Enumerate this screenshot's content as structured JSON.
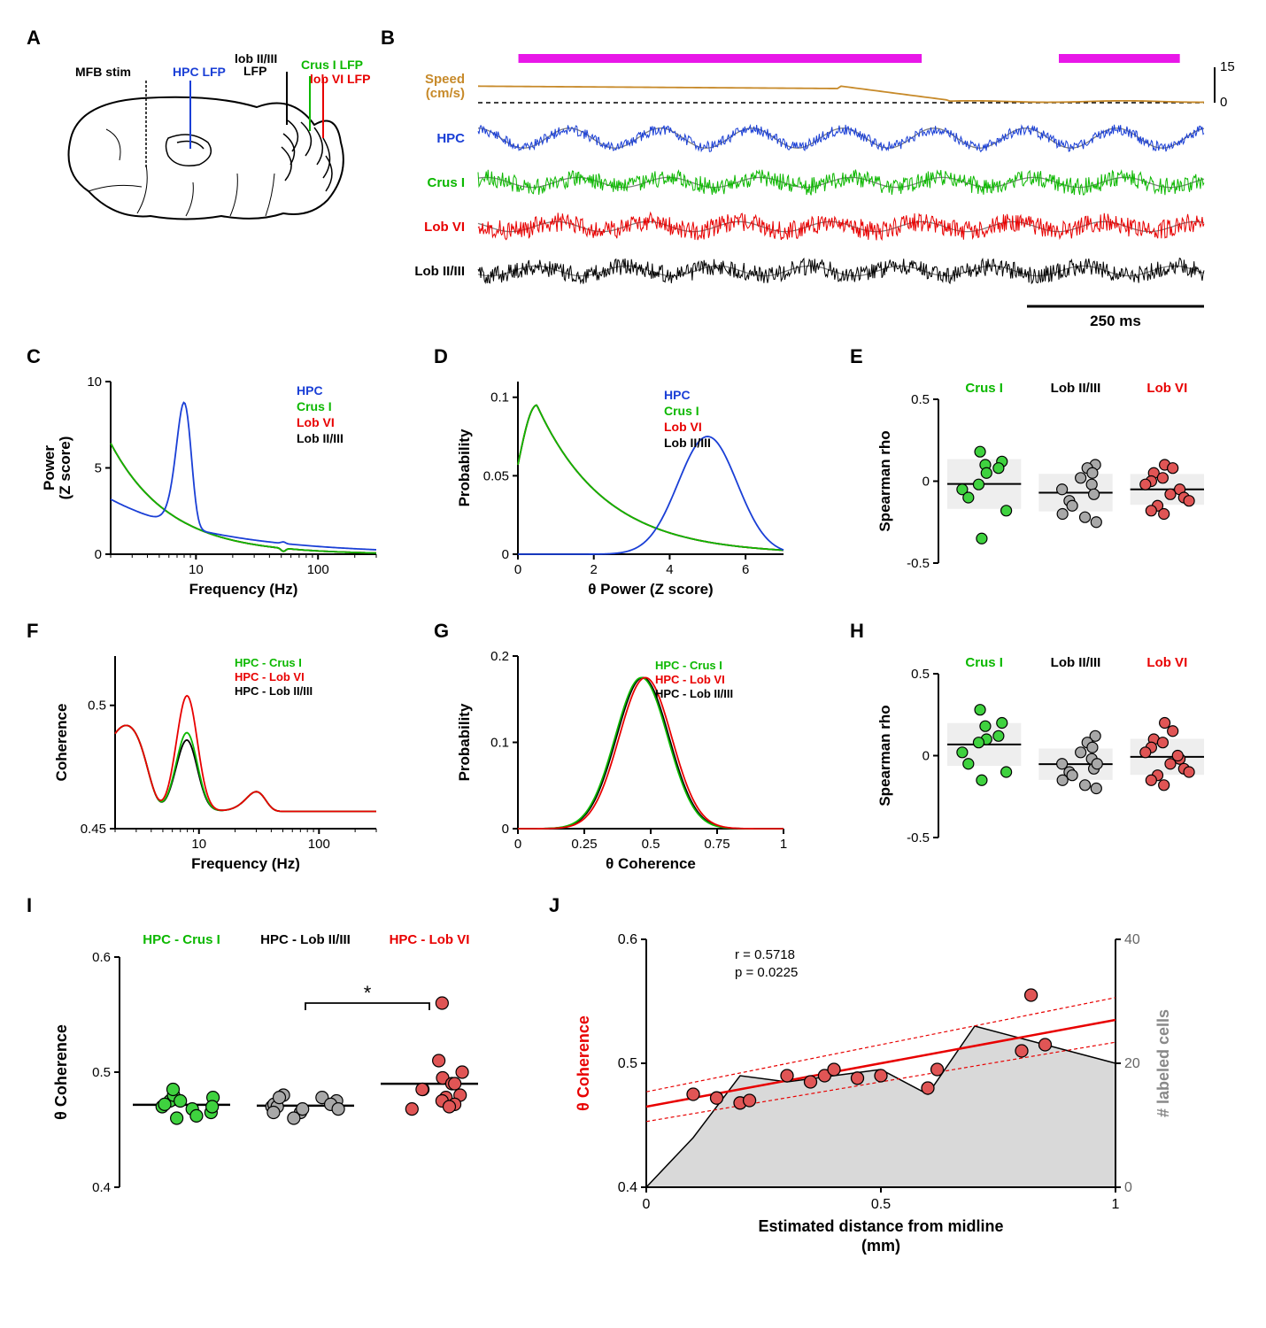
{
  "colors": {
    "hpc": "#1a3fd6",
    "crusI": "#0cb800",
    "lobVI": "#e80000",
    "lobII_III": "#000000",
    "speed": "#c78a2a",
    "magenta": "#e817e8",
    "gray": "#808080",
    "lightgray": "#cccccc",
    "fillgray": "#d9d9d9",
    "dotgreen": "#3fd23f",
    "dotgray": "#a8a8a8",
    "dotred": "#e05555"
  },
  "global": {
    "fontsize_label": 22,
    "fontsize_axis": 16,
    "fontsize_tick": 14
  },
  "panelA": {
    "label": "A",
    "brain_labels": {
      "mfb": "MFB stim",
      "hpc": "HPC LFP",
      "lobII_III": "lob II/III\nLFP",
      "crusI": "Crus I LFP",
      "lobVI": "lob VI LFP"
    }
  },
  "panelB": {
    "label": "B",
    "traces": [
      {
        "name": "Speed\n(cm/s)",
        "key": "speed"
      },
      {
        "name": "HPC",
        "key": "hpc"
      },
      {
        "name": "Crus I",
        "key": "crusI"
      },
      {
        "name": "Lob VI",
        "key": "lobVI"
      },
      {
        "name": "Lob II/III",
        "key": "lobII_III"
      }
    ],
    "scalebar": {
      "x": "250 ms",
      "y_top": "15",
      "y_bot": "0"
    },
    "magenta_bars": [
      [
        50,
        550
      ],
      [
        720,
        870
      ]
    ]
  },
  "panelC": {
    "label": "C",
    "xlabel": "Frequency (Hz)",
    "ylabel": "Power\n(Z score)",
    "xlog": true,
    "xlim": [
      2,
      300
    ],
    "ylim": [
      0,
      10
    ],
    "yticks": [
      0,
      5,
      10
    ],
    "xticks": [
      10,
      100
    ],
    "legend": [
      "HPC",
      "Crus I",
      "Lob VI",
      "Lob II/III"
    ],
    "legend_keys": [
      "hpc",
      "crusI",
      "lobVI",
      "lobII_III"
    ]
  },
  "panelD": {
    "label": "D",
    "xlabel": "θ Power (Z score)",
    "ylabel": "Probability",
    "xlim": [
      0,
      7
    ],
    "ylim": [
      0,
      0.11
    ],
    "xticks": [
      0,
      2,
      4,
      6
    ],
    "yticks": [
      0,
      0.05,
      0.1
    ],
    "legend": [
      "HPC",
      "Crus I",
      "Lob VI",
      "Lob II/III"
    ],
    "legend_keys": [
      "hpc",
      "crusI",
      "lobVI",
      "lobII_III"
    ]
  },
  "panelE": {
    "label": "E",
    "ylabel": "Spearman rho",
    "ylim": [
      -0.5,
      0.5
    ],
    "yticks": [
      -0.5,
      0,
      0.5
    ],
    "groups": [
      "Crus I",
      "Lob II/III",
      "Lob VI"
    ],
    "group_keys": [
      "crusI",
      "lobII_III",
      "lobVI"
    ],
    "data": {
      "crusI": [
        0.18,
        0.12,
        0.1,
        0.08,
        0.05,
        -0.02,
        -0.05,
        -0.1,
        -0.18,
        -0.35
      ],
      "lobII_III": [
        0.1,
        0.08,
        0.05,
        0.02,
        -0.02,
        -0.05,
        -0.08,
        -0.12,
        -0.15,
        -0.2,
        -0.22,
        -0.25
      ],
      "lobVI": [
        0.1,
        0.08,
        0.05,
        0.02,
        0,
        -0.02,
        -0.05,
        -0.08,
        -0.1,
        -0.12,
        -0.15,
        -0.18,
        -0.2
      ]
    }
  },
  "panelF": {
    "label": "F",
    "xlabel": "Frequency (Hz)",
    "ylabel": "Coherence",
    "xlog": true,
    "xlim": [
      2,
      300
    ],
    "ylim": [
      0.45,
      0.52
    ],
    "xticks": [
      10,
      100
    ],
    "yticks": [
      0.45,
      0.5
    ],
    "legend": [
      "HPC - Crus I",
      "HPC - Lob VI",
      "HPC - Lob II/III"
    ],
    "legend_keys": [
      "crusI",
      "lobVI",
      "lobII_III"
    ]
  },
  "panelG": {
    "label": "G",
    "xlabel": "θ Coherence",
    "ylabel": "Probability",
    "xlim": [
      0,
      1
    ],
    "ylim": [
      0,
      0.2
    ],
    "xticks": [
      0,
      0.25,
      0.5,
      0.75,
      1
    ],
    "yticks": [
      0,
      0.1,
      0.2
    ],
    "legend": [
      "HPC - Crus I",
      "HPC - Lob VI",
      "HPC - Lob II/III"
    ],
    "legend_keys": [
      "crusI",
      "lobVI",
      "lobII_III"
    ]
  },
  "panelH": {
    "label": "H",
    "ylabel": "Spearman rho",
    "ylim": [
      -0.5,
      0.5
    ],
    "yticks": [
      -0.5,
      0,
      0.5
    ],
    "groups": [
      "Crus I",
      "Lob II/III",
      "Lob VI"
    ],
    "group_keys": [
      "crusI",
      "lobII_III",
      "lobVI"
    ],
    "data": {
      "crusI": [
        0.28,
        0.2,
        0.18,
        0.12,
        0.1,
        0.08,
        0.02,
        -0.05,
        -0.1,
        -0.15
      ],
      "lobII_III": [
        0.12,
        0.08,
        0.05,
        0.02,
        -0.02,
        -0.05,
        -0.08,
        -0.1,
        -0.12,
        -0.15,
        -0.18,
        -0.2,
        -0.05
      ],
      "lobVI": [
        0.2,
        0.15,
        0.1,
        0.08,
        0.05,
        0.02,
        -0.02,
        -0.05,
        -0.08,
        -0.1,
        -0.12,
        -0.15,
        -0.18,
        0.0
      ]
    }
  },
  "panelI": {
    "label": "I",
    "ylabel": "θ Coherence",
    "ylim": [
      0.4,
      0.6
    ],
    "yticks": [
      0.4,
      0.5,
      0.6
    ],
    "groups": [
      "HPC - Crus I",
      "HPC - Lob II/III",
      "HPC - Lob VI"
    ],
    "group_keys": [
      "crusI",
      "lobII_III",
      "lobVI"
    ],
    "data": {
      "crusI": [
        0.475,
        0.47,
        0.465,
        0.48,
        0.468,
        0.472,
        0.478,
        0.46,
        0.485,
        0.475,
        0.47,
        0.462
      ],
      "lobII_III": [
        0.47,
        0.465,
        0.468,
        0.472,
        0.478,
        0.46,
        0.475,
        0.47,
        0.465,
        0.48,
        0.472,
        0.468,
        0.478
      ],
      "lobVI": [
        0.56,
        0.51,
        0.5,
        0.495,
        0.49,
        0.485,
        0.48,
        0.478,
        0.475,
        0.472,
        0.47,
        0.468,
        0.49,
        0.485
      ]
    },
    "sig": {
      "from": 1,
      "to": 2,
      "label": "*",
      "y": 0.56
    }
  },
  "panelJ": {
    "label": "J",
    "xlabel": "Estimated distance from midline\n(mm)",
    "ylabel_left": "θ Coherence",
    "ylabel_right": "# labeled cells",
    "xlim": [
      0,
      1
    ],
    "ylim_left": [
      0.4,
      0.6
    ],
    "ylim_right": [
      0,
      40
    ],
    "xticks": [
      0,
      0.5,
      1
    ],
    "yticks_left": [
      0.4,
      0.5,
      0.6
    ],
    "yticks_right": [
      0,
      20,
      40
    ],
    "r_text": "r = 0.5718",
    "p_text": "p = 0.0225",
    "scatter": [
      [
        0.1,
        0.475
      ],
      [
        0.15,
        0.472
      ],
      [
        0.2,
        0.468
      ],
      [
        0.22,
        0.47
      ],
      [
        0.3,
        0.49
      ],
      [
        0.35,
        0.485
      ],
      [
        0.38,
        0.49
      ],
      [
        0.4,
        0.495
      ],
      [
        0.45,
        0.488
      ],
      [
        0.5,
        0.49
      ],
      [
        0.6,
        0.48
      ],
      [
        0.62,
        0.495
      ],
      [
        0.8,
        0.51
      ],
      [
        0.82,
        0.555
      ],
      [
        0.85,
        0.515
      ]
    ],
    "area_curve": [
      [
        0,
        0
      ],
      [
        0.1,
        8
      ],
      [
        0.2,
        18
      ],
      [
        0.3,
        17
      ],
      [
        0.4,
        18
      ],
      [
        0.5,
        19
      ],
      [
        0.6,
        15
      ],
      [
        0.7,
        26
      ],
      [
        0.8,
        24
      ],
      [
        0.9,
        22
      ],
      [
        1,
        20
      ]
    ],
    "fit": {
      "slope": 0.07,
      "intercept": 0.465
    }
  }
}
